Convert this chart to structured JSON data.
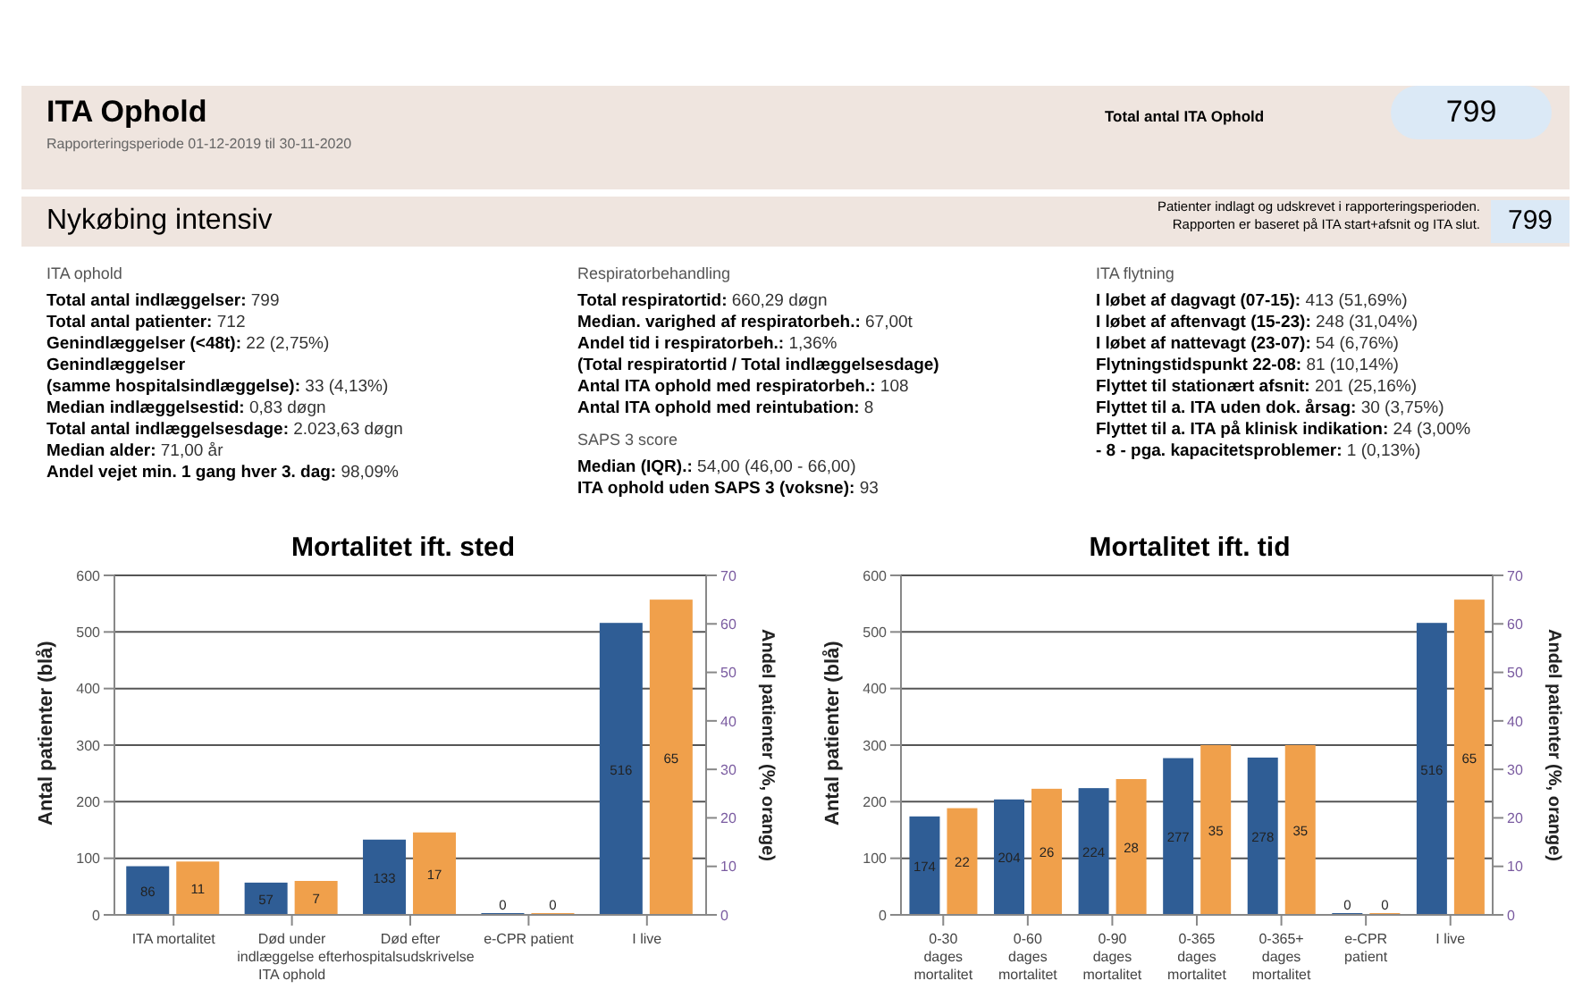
{
  "chart_data": [
    {
      "type": "other",
      "title": "ITA Ophold",
      "subtitle": "Rapporteringsperiode 01-12-2019 til 30-11-2020",
      "annotations": [
        "Total antal ITA Ophold",
        "799",
        "Nykøbing intensiv",
        "Patienter indlagt og udskrevet i rapporteringsperioden.",
        "Rapporten er baseret på ITA start+afsnit og ITA slut.",
        "799",
        "ITA ophold",
        "Total antal indlæggelser: 799",
        "Total antal patienter: 712",
        "Genindlæggelser (<48t): 22 (2,75%)",
        "Genindlæggelser",
        "(samme hospitalsindlæggelse): 33 (4,13%)",
        "Median indlæggelsestid: 0,83 døgn",
        "Total antal indlæggelsesdage: 2.023,63 døgn",
        "Median alder: 71,00 år",
        "Andel vejet min. 1 gang hver 3. dag: 98,09%",
        "Respiratorbehandling",
        "Total respiratortid: 660,29 døgn",
        "Median. varighed af respiratorbeh.: 67,00t",
        "Andel tid i respiratorbeh.: 1,36%",
        "(Total respiratortid / Total indlæggelsesdage)",
        "Antal ITA ophold med respiratorbeh.: 108",
        "Antal ITA ophold med reintubation: 8",
        "SAPS 3 score",
        "Median (IQR).: 54,00 (46,00 - 66,00)",
        "ITA ophold uden SAPS 3 (voksne): 93",
        "ITA flytning",
        "I løbet af dagvagt (07-15): 413 (51,69%)",
        "I løbet af aftenvagt (15-23): 248 (31,04%)",
        "I løbet af nattevagt (23-07): 54 (6,76%)",
        "Flytningstidspunkt 22-08: 81 (10,14%)",
        "Flyttet til stationært afsnit: 201 (25,16%)",
        "Flyttet til a. ITA uden dok. årsag: 30 (3,75%)",
        "Flyttet til a. ITA på klinisk indikation: 24 (3,00%",
        "- 8 - pga. kapacitetsproblemer: 1 (0,13%)"
      ]
    },
    {
      "type": "bar",
      "title": "Mortalitet ift. sted",
      "ylabel": "Antal patienter (blå)",
      "y2label": "Andel patienter (%, orange)",
      "categories": [
        "ITA mortalitet",
        "Død under indlæggelse efter ITA ophold",
        "Død efter hospitalsudskrivelse",
        "e-CPR patient",
        "I live"
      ],
      "series": [
        {
          "color": "#2f5d95",
          "values": [
            86,
            57,
            133,
            0,
            516
          ]
        },
        {
          "color": "#f0a04b",
          "values": [
            11,
            7,
            17,
            0,
            65
          ],
          "axis": "y2"
        }
      ],
      "ylim": [
        0,
        600
      ],
      "yticks": [
        0,
        100,
        200,
        300,
        400,
        500,
        600
      ],
      "y2lim": [
        0,
        70
      ],
      "y2ticks": [
        0,
        10,
        20,
        30,
        40,
        50,
        60,
        70
      ],
      "grid": "y",
      "data_labels": true
    },
    {
      "type": "bar",
      "title": "Mortalitet ift. tid",
      "ylabel": "Antal patienter (blå)",
      "y2label": "Andel patienter (%, orange)",
      "categories": [
        "0-30 dages mortalitet",
        "0-60 dages mortalitet",
        "0-90 dages mortalitet",
        "0-365 dages mortalitet",
        "0-365+ dages mortalitet",
        "e-CPR patient",
        "I live"
      ],
      "series": [
        {
          "color": "#2f5d95",
          "values": [
            174,
            204,
            224,
            277,
            278,
            0,
            516
          ]
        },
        {
          "color": "#f0a04b",
          "values": [
            22,
            26,
            28,
            35,
            35,
            0,
            65
          ],
          "axis": "y2"
        }
      ],
      "ylim": [
        0,
        600
      ],
      "yticks": [
        0,
        100,
        200,
        300,
        400,
        500,
        600
      ],
      "y2lim": [
        0,
        70
      ],
      "y2ticks": [
        0,
        10,
        20,
        30,
        40,
        50,
        60,
        70
      ],
      "grid": "y",
      "data_labels": true
    }
  ]
}
